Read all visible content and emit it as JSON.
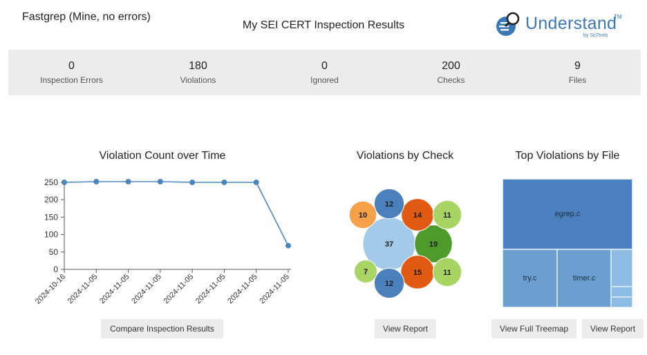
{
  "header": {
    "project_title": "Fastgrep (Mine, no errors)",
    "page_title": "My SEI CERT Inspection Results"
  },
  "logo": {
    "name": "Understand",
    "tm": "TM",
    "subtitle": "by SciTools",
    "color": "#3b78b5"
  },
  "stats": [
    {
      "value": "0",
      "label": "Inspection Errors"
    },
    {
      "value": "180",
      "label": "Violations"
    },
    {
      "value": "0",
      "label": "Ignored"
    },
    {
      "value": "200",
      "label": "Checks"
    },
    {
      "value": "9",
      "label": "Files"
    }
  ],
  "line_chart": {
    "title": "Violation Count over Time",
    "button": "Compare Inspection Results"
  },
  "bubble_chart": {
    "title": "Violations by Check",
    "button": "View Report"
  },
  "treemap": {
    "title": "Top Violations by File",
    "button_full": "View Full Treemap",
    "button_report": "View Report",
    "cells": [
      {
        "label": "egrep.c"
      },
      {
        "label": "try.c"
      },
      {
        "label": "timer.c"
      },
      {
        "label": ""
      },
      {
        "label": ""
      },
      {
        "label": ""
      }
    ]
  },
  "chart_data": [
    {
      "type": "line",
      "title": "Violation Count over Time",
      "x": [
        "2024-10-16",
        "2024-11-05",
        "2024-11-05",
        "2024-11-05",
        "2024-11-05",
        "2024-11-05",
        "2024-11-05",
        "2024-11-05"
      ],
      "values": [
        250,
        252,
        252,
        252,
        250,
        250,
        250,
        68
      ],
      "ylim": [
        0,
        250
      ],
      "yticks": [
        0,
        50,
        100,
        150,
        200,
        250
      ],
      "color": "#4a86be",
      "grid": false
    },
    {
      "type": "bubble",
      "title": "Violations by Check",
      "bubbles": [
        {
          "value": 37,
          "color": "#a3cbe9"
        },
        {
          "value": 19,
          "color": "#4e9a2b"
        },
        {
          "value": 15,
          "color": "#e05a12"
        },
        {
          "value": 14,
          "color": "#e05a12"
        },
        {
          "value": 12,
          "color": "#4a81bc"
        },
        {
          "value": 12,
          "color": "#4a81bc"
        },
        {
          "value": 11,
          "color": "#a8d464"
        },
        {
          "value": 11,
          "color": "#a8d464"
        },
        {
          "value": 10,
          "color": "#f4a14a"
        },
        {
          "value": 7,
          "color": "#a8d464"
        }
      ]
    },
    {
      "type": "treemap",
      "title": "Top Violations by File",
      "colors": {
        "dark": "#4a80be",
        "medium": "#6a9fd0",
        "light": "#8cbbe3"
      }
    }
  ]
}
